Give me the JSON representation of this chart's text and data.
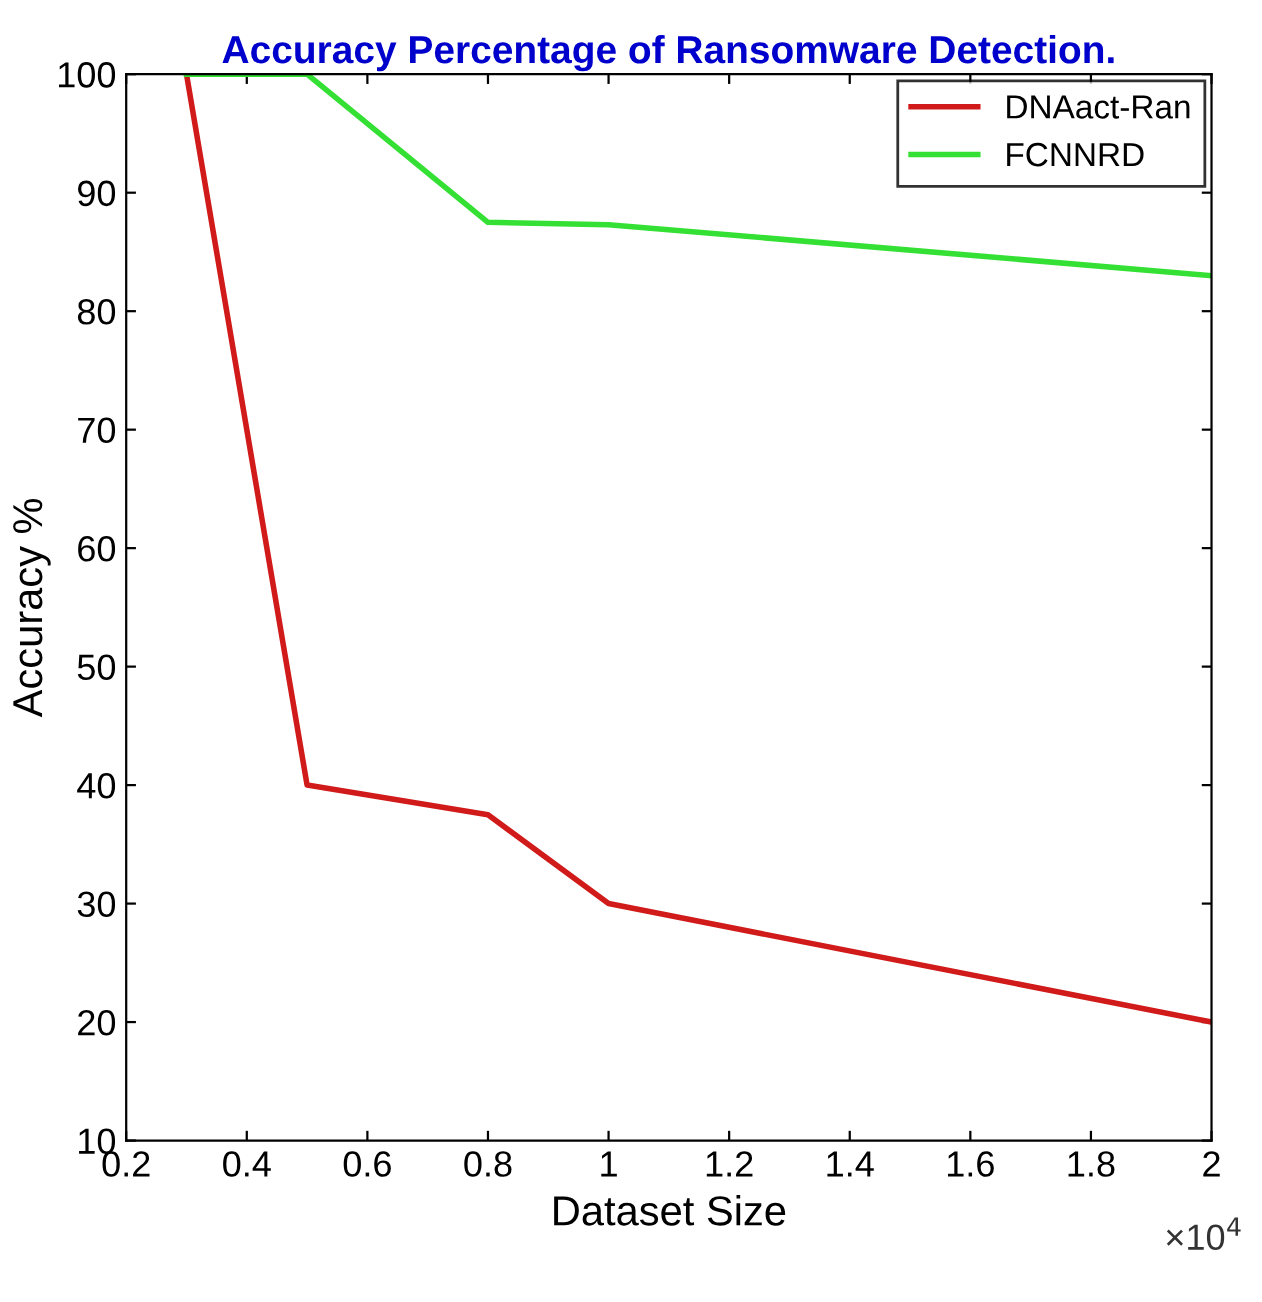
{
  "chart_data": {
    "type": "line",
    "title": "Accuracy Percentage of Ransomware Detection.",
    "xlabel": "Dataset Size",
    "ylabel": "Accuracy %",
    "annotations": [
      "×10$^{4}$"
    ],
    "series": [
      {
        "name": "DNAact-Ran",
        "color": "#d11a1a",
        "x": [
          0.3,
          0.5,
          0.8,
          1,
          2
        ],
        "values": [
          100,
          40,
          37.5,
          30,
          20
        ]
      },
      {
        "name": "FCNNRD",
        "color": "#33e033",
        "x": [
          0.3,
          0.5,
          0.8,
          1,
          2
        ],
        "values": [
          100,
          100,
          87.5,
          87.3,
          83
        ]
      }
    ],
    "xlim": [
      0.2,
      2
    ],
    "xticks": [
      0.2,
      0.4,
      0.6,
      0.8,
      1,
      1.2,
      1.4,
      1.6,
      1.8,
      2
    ],
    "ylim": [
      10,
      100
    ],
    "yticks": [
      10,
      20,
      30,
      40,
      50,
      60,
      70,
      80,
      90,
      100
    ],
    "grid": false,
    "legend": "top right",
    "marker": "none",
    "line_style": "solid"
  }
}
